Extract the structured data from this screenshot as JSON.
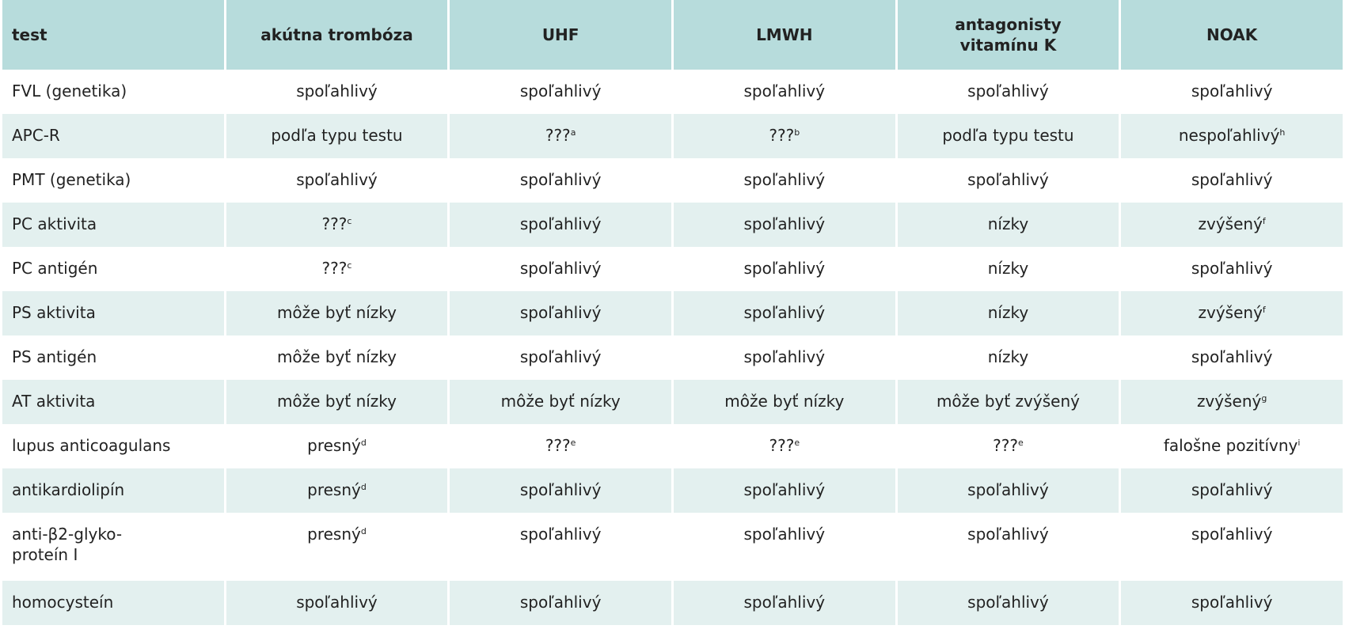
{
  "table": {
    "header": [
      "test",
      "akútna trombóza",
      "UHF",
      "LMWH",
      {
        "lines": [
          "antagonisty",
          "vitamínu K"
        ]
      },
      "NOAK"
    ],
    "rows": [
      [
        "FVL (genetika)",
        "spoľahlivý",
        "spoľahlivý",
        "spoľahlivý",
        "spoľahlivý",
        "spoľahlivý"
      ],
      [
        "APC-R",
        "podľa typu testu",
        {
          "text": "???",
          "sup": "a"
        },
        {
          "text": "???",
          "sup": "b"
        },
        "podľa typu testu",
        {
          "text": "nespoľahlivý",
          "sup": "h"
        }
      ],
      [
        "PMT (genetika)",
        "spoľahlivý",
        "spoľahlivý",
        "spoľahlivý",
        "spoľahlivý",
        "spoľahlivý"
      ],
      [
        "PC aktivita",
        {
          "text": "???",
          "sup": "c"
        },
        "spoľahlivý",
        "spoľahlivý",
        "nízky",
        {
          "text": "zvýšený",
          "sup": "f"
        }
      ],
      [
        "PC antigén",
        {
          "text": "???",
          "sup": "c"
        },
        "spoľahlivý",
        "spoľahlivý",
        "nízky",
        "spoľahlivý"
      ],
      [
        "PS aktivita",
        "môže byť nízky",
        "spoľahlivý",
        "spoľahlivý",
        "nízky",
        {
          "text": "zvýšený",
          "sup": "f"
        }
      ],
      [
        "PS antigén",
        "môže byť nízky",
        "spoľahlivý",
        "spoľahlivý",
        "nízky",
        "spoľahlivý"
      ],
      [
        "AT aktivita",
        "môže byť nízky",
        "môže byť nízky",
        "môže byť nízky",
        "môže byť zvýšený",
        {
          "text": "zvýšený",
          "sup": "g"
        }
      ],
      [
        "lupus anticoagulans",
        {
          "text": "presný",
          "sup": "d"
        },
        {
          "text": "???",
          "sup": "e"
        },
        {
          "text": "???",
          "sup": "e"
        },
        {
          "text": "???",
          "sup": "e"
        },
        {
          "text": "falošne pozitívny",
          "sup": "i"
        }
      ],
      [
        "antikardiolipín",
        {
          "text": "presný",
          "sup": "d"
        },
        "spoľahlivý",
        "spoľahlivý",
        "spoľahlivý",
        "spoľahlivý"
      ],
      [
        {
          "lines": [
            "anti-β2-glyko-",
            "proteín I"
          ]
        },
        {
          "text": "presný",
          "sup": "d"
        },
        "spoľahlivý",
        "spoľahlivý",
        "spoľahlivý",
        "spoľahlivý"
      ],
      [
        "homocysteín",
        "spoľahlivý",
        "spoľahlivý",
        "spoľahlivý",
        "spoľahlivý",
        "spoľahlivý"
      ]
    ]
  }
}
